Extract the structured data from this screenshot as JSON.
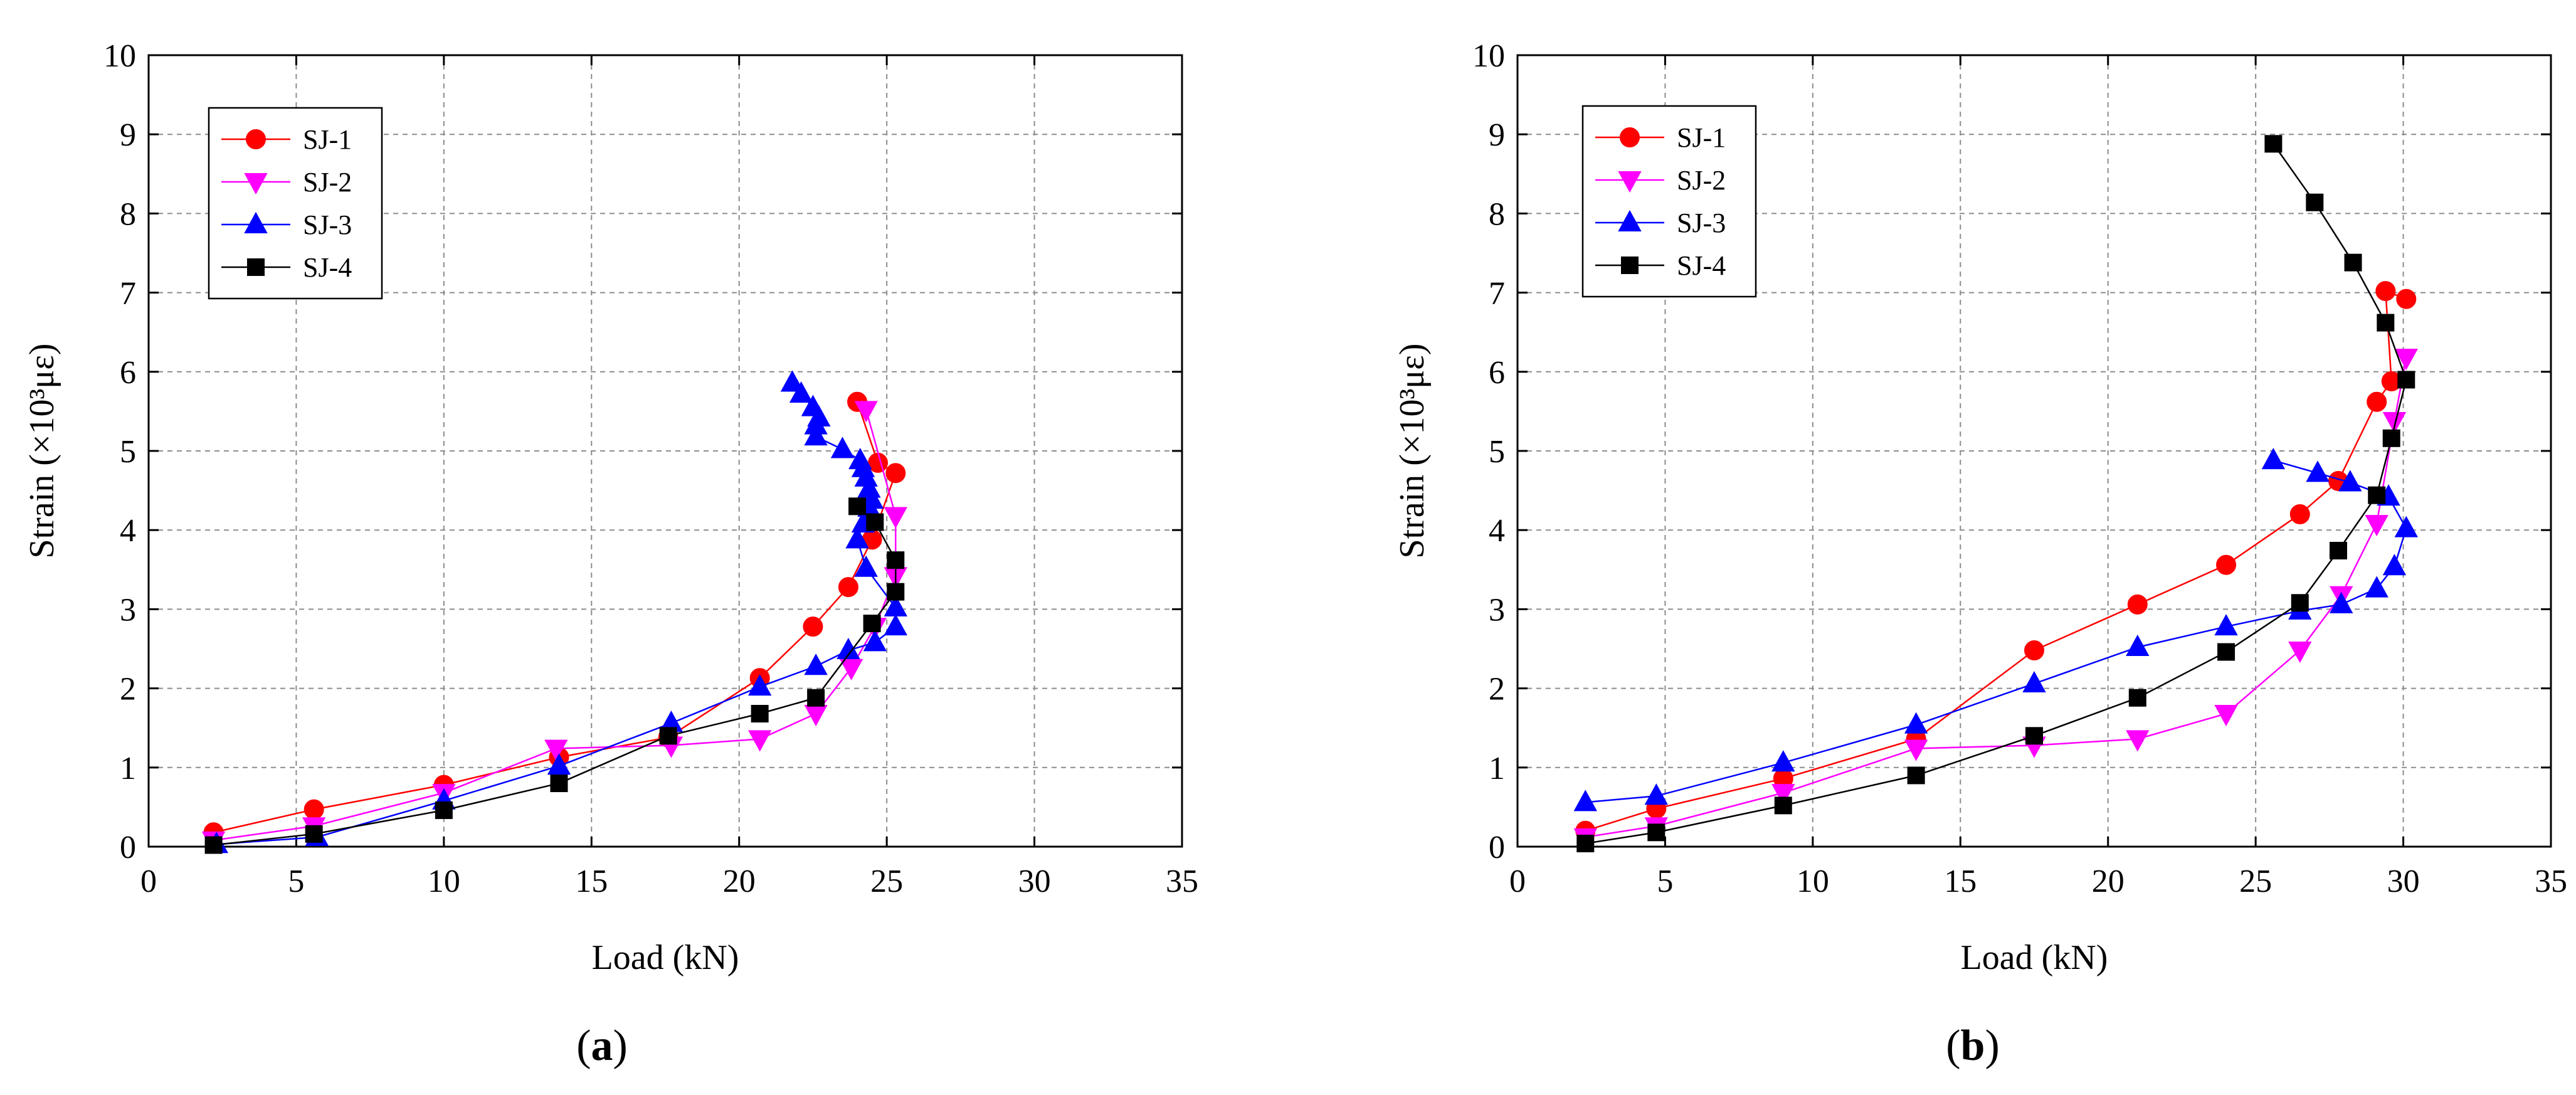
{
  "chart_data": [
    {
      "type": "line",
      "panel_label": "(a)",
      "panel_letter": "a",
      "xlabel": "Load  (kN)",
      "ylabel": "Strain  (×10³με)",
      "xlim": [
        0,
        35
      ],
      "ylim": [
        0,
        10
      ],
      "xticks": [
        0,
        5,
        10,
        15,
        20,
        25,
        30,
        35
      ],
      "yticks": [
        0,
        1,
        2,
        3,
        4,
        5,
        6,
        7,
        8,
        9,
        10
      ],
      "grid": true,
      "legend_position": "top-left",
      "series": [
        {
          "name": "SJ-1",
          "color": "#ff0000",
          "marker": "circle",
          "x": [
            2.2,
            5.6,
            10.0,
            13.9,
            17.6,
            20.7,
            22.5,
            23.7,
            24.5,
            25.3,
            24.7,
            24.0
          ],
          "y": [
            0.18,
            0.47,
            0.78,
            1.13,
            1.38,
            2.13,
            2.78,
            3.28,
            3.88,
            4.72,
            4.85,
            5.62
          ]
        },
        {
          "name": "SJ-2",
          "color": "#ff00ff",
          "marker": "triangle-down",
          "x": [
            2.2,
            5.6,
            10.0,
            13.8,
            17.7,
            20.7,
            22.6,
            23.8,
            24.6,
            25.3,
            25.3,
            24.3
          ],
          "y": [
            0.08,
            0.26,
            0.68,
            1.24,
            1.28,
            1.36,
            1.68,
            2.26,
            2.78,
            3.42,
            4.18,
            5.52
          ]
        },
        {
          "name": "SJ-3",
          "color": "#0000ff",
          "marker": "triangle-up",
          "x": [
            2.3,
            5.7,
            10.0,
            13.9,
            17.7,
            20.7,
            22.6,
            23.7,
            24.6,
            25.3,
            25.3,
            24.3,
            24.0,
            24.2,
            24.4,
            24.5,
            24.4,
            24.3,
            24.2,
            24.1,
            23.5,
            22.6,
            22.6,
            22.7,
            22.5,
            22.1,
            21.8
          ],
          "y": [
            0.03,
            0.12,
            0.58,
            1.02,
            1.56,
            2.02,
            2.28,
            2.48,
            2.58,
            2.78,
            3.02,
            3.52,
            3.88,
            4.08,
            4.28,
            4.38,
            4.52,
            4.66,
            4.78,
            4.88,
            5.02,
            5.18,
            5.32,
            5.42,
            5.55,
            5.72,
            5.86
          ]
        },
        {
          "name": "SJ-4",
          "color": "#000000",
          "marker": "square",
          "x": [
            2.2,
            5.6,
            10.0,
            13.9,
            17.6,
            20.7,
            22.6,
            24.5,
            25.3,
            25.3,
            24.6,
            24.0
          ],
          "y": [
            0.02,
            0.16,
            0.46,
            0.8,
            1.4,
            1.68,
            1.88,
            2.82,
            3.22,
            3.62,
            4.1,
            4.3
          ]
        }
      ]
    },
    {
      "type": "line",
      "panel_label": "(b)",
      "panel_letter": "b",
      "xlabel": "Load  (kN)",
      "ylabel": "Strain  (×10³με)",
      "xlim": [
        0,
        35
      ],
      "ylim": [
        0,
        10
      ],
      "xticks": [
        0,
        5,
        10,
        15,
        20,
        25,
        30,
        35
      ],
      "yticks": [
        0,
        1,
        2,
        3,
        4,
        5,
        6,
        7,
        8,
        9,
        10
      ],
      "grid": true,
      "legend_position": "top-left",
      "series": [
        {
          "name": "SJ-1",
          "color": "#ff0000",
          "marker": "circle",
          "x": [
            2.3,
            4.7,
            9.0,
            13.5,
            17.5,
            21.0,
            24.0,
            26.5,
            27.8,
            29.1,
            29.6,
            29.4,
            30.1
          ],
          "y": [
            0.2,
            0.48,
            0.86,
            1.36,
            2.48,
            3.06,
            3.56,
            4.2,
            4.62,
            5.62,
            5.88,
            7.02,
            6.92
          ]
        },
        {
          "name": "SJ-2",
          "color": "#ff00ff",
          "marker": "triangle-down",
          "x": [
            2.3,
            4.7,
            9.0,
            13.5,
            17.5,
            21.0,
            24.0,
            26.5,
            27.9,
            29.1,
            29.7,
            30.1
          ],
          "y": [
            0.12,
            0.26,
            0.68,
            1.24,
            1.28,
            1.36,
            1.68,
            2.48,
            3.18,
            4.08,
            5.38,
            6.18
          ]
        },
        {
          "name": "SJ-3",
          "color": "#0000ff",
          "marker": "triangle-up",
          "x": [
            2.3,
            4.7,
            9.0,
            13.5,
            17.5,
            21.0,
            24.0,
            26.5,
            27.9,
            29.1,
            29.7,
            30.1,
            29.5,
            28.2,
            27.1,
            25.6
          ],
          "y": [
            0.56,
            0.64,
            1.06,
            1.54,
            2.06,
            2.52,
            2.78,
            2.98,
            3.06,
            3.26,
            3.54,
            4.02,
            4.42,
            4.6,
            4.72,
            4.88
          ]
        },
        {
          "name": "SJ-4",
          "color": "#000000",
          "marker": "square",
          "x": [
            2.3,
            4.7,
            9.0,
            13.5,
            17.5,
            21.0,
            24.0,
            26.5,
            27.8,
            29.1,
            29.6,
            30.1,
            29.4,
            28.3,
            27.0,
            25.6
          ],
          "y": [
            0.04,
            0.18,
            0.52,
            0.9,
            1.4,
            1.88,
            2.46,
            3.08,
            3.74,
            4.44,
            5.16,
            5.9,
            6.62,
            7.38,
            8.14,
            8.88
          ]
        }
      ]
    }
  ]
}
